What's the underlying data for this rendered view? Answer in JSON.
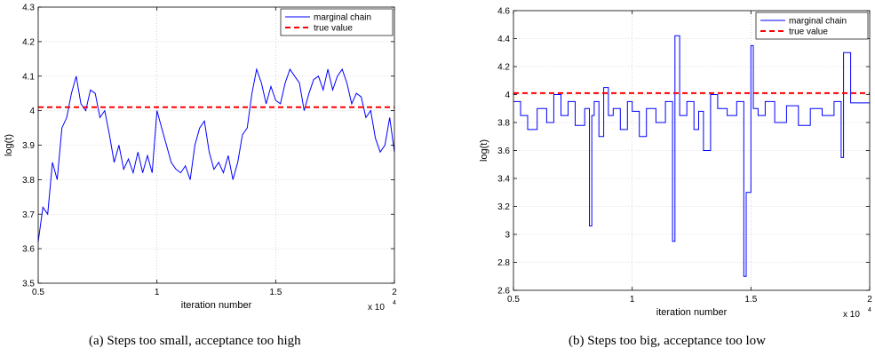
{
  "chart_data": [
    {
      "type": "line",
      "caption": "(a)  Steps too small, acceptance too high",
      "xlabel": "iteration number",
      "ylabel": "log(t)",
      "x_multiplier": "x 10",
      "x_multiplier_exp": "4",
      "xlim": [
        0.5,
        2
      ],
      "ylim": [
        3.5,
        4.3
      ],
      "xticks": [
        "0.5",
        "1",
        "1.5",
        "2"
      ],
      "yticks": [
        "3.5",
        "3.6",
        "3.7",
        "3.8",
        "3.9",
        "4",
        "4.1",
        "4.2",
        "4.3"
      ],
      "grid": true,
      "legend_position": "top-right",
      "series": [
        {
          "name": "marginal chain",
          "color": "#0000ff",
          "style": "solid",
          "x": [
            0.5,
            0.52,
            0.54,
            0.56,
            0.58,
            0.6,
            0.62,
            0.64,
            0.66,
            0.68,
            0.7,
            0.72,
            0.74,
            0.76,
            0.78,
            0.8,
            0.82,
            0.84,
            0.86,
            0.88,
            0.9,
            0.92,
            0.94,
            0.96,
            0.98,
            1.0,
            1.02,
            1.04,
            1.06,
            1.08,
            1.1,
            1.12,
            1.14,
            1.16,
            1.18,
            1.2,
            1.22,
            1.24,
            1.26,
            1.28,
            1.3,
            1.32,
            1.34,
            1.36,
            1.38,
            1.4,
            1.42,
            1.44,
            1.46,
            1.48,
            1.5,
            1.52,
            1.54,
            1.56,
            1.58,
            1.6,
            1.62,
            1.64,
            1.66,
            1.68,
            1.7,
            1.72,
            1.74,
            1.76,
            1.78,
            1.8,
            1.82,
            1.84,
            1.86,
            1.88,
            1.9,
            1.92,
            1.94,
            1.96,
            1.98,
            2.0
          ],
          "values": [
            3.62,
            3.72,
            3.7,
            3.85,
            3.8,
            3.95,
            3.98,
            4.05,
            4.1,
            4.02,
            4.0,
            4.06,
            4.05,
            3.98,
            4.0,
            3.93,
            3.85,
            3.9,
            3.83,
            3.86,
            3.82,
            3.88,
            3.82,
            3.87,
            3.82,
            4.0,
            3.95,
            3.9,
            3.85,
            3.83,
            3.82,
            3.84,
            3.8,
            3.9,
            3.95,
            3.97,
            3.88,
            3.83,
            3.85,
            3.82,
            3.87,
            3.8,
            3.85,
            3.93,
            3.95,
            4.05,
            4.12,
            4.08,
            4.02,
            4.07,
            4.03,
            4.02,
            4.08,
            4.12,
            4.1,
            4.08,
            4.0,
            4.05,
            4.09,
            4.1,
            4.06,
            4.12,
            4.06,
            4.1,
            4.12,
            4.08,
            4.02,
            4.05,
            4.04,
            3.98,
            4.0,
            3.92,
            3.88,
            3.9,
            3.98,
            3.88
          ]
        },
        {
          "name": "true value",
          "color": "#ff0000",
          "style": "dashed",
          "x": [
            0.5,
            2.0
          ],
          "values": [
            4.01,
            4.01
          ]
        }
      ]
    },
    {
      "type": "line",
      "caption": "(b)  Steps too big, acceptance too low",
      "xlabel": "iteration number",
      "ylabel": "log(t)",
      "x_multiplier": "x 10",
      "x_multiplier_exp": "4",
      "xlim": [
        0.5,
        2
      ],
      "ylim": [
        2.6,
        4.6
      ],
      "xticks": [
        "0.5",
        "1",
        "1.5",
        "2"
      ],
      "yticks": [
        "2.6",
        "2.8",
        "3",
        "3.2",
        "3.4",
        "3.6",
        "3.8",
        "4",
        "4.2",
        "4.4",
        "4.6"
      ],
      "grid": true,
      "legend_position": "top-right",
      "series": [
        {
          "name": "marginal chain",
          "color": "#0000ff",
          "style": "solid",
          "x": [
            0.5,
            0.53,
            0.53,
            0.56,
            0.56,
            0.6,
            0.6,
            0.64,
            0.64,
            0.67,
            0.67,
            0.7,
            0.7,
            0.73,
            0.73,
            0.76,
            0.76,
            0.8,
            0.8,
            0.82,
            0.82,
            0.83,
            0.83,
            0.84,
            0.84,
            0.86,
            0.86,
            0.88,
            0.88,
            0.9,
            0.9,
            0.92,
            0.92,
            0.95,
            0.95,
            0.98,
            0.98,
            1.0,
            1.0,
            1.03,
            1.03,
            1.06,
            1.06,
            1.1,
            1.1,
            1.14,
            1.14,
            1.17,
            1.17,
            1.18,
            1.18,
            1.2,
            1.2,
            1.23,
            1.23,
            1.26,
            1.26,
            1.28,
            1.28,
            1.3,
            1.3,
            1.33,
            1.33,
            1.36,
            1.36,
            1.4,
            1.4,
            1.44,
            1.44,
            1.47,
            1.47,
            1.48,
            1.48,
            1.5,
            1.5,
            1.51,
            1.51,
            1.53,
            1.53,
            1.56,
            1.56,
            1.6,
            1.6,
            1.65,
            1.65,
            1.7,
            1.7,
            1.75,
            1.75,
            1.8,
            1.8,
            1.85,
            1.85,
            1.88,
            1.88,
            1.89,
            1.89,
            1.92,
            1.92,
            2.0
          ],
          "values": [
            3.95,
            3.95,
            3.85,
            3.85,
            3.75,
            3.75,
            3.9,
            3.9,
            3.8,
            3.8,
            4.0,
            4.0,
            3.85,
            3.85,
            3.95,
            3.95,
            3.78,
            3.78,
            3.9,
            3.9,
            3.06,
            3.06,
            3.85,
            3.85,
            3.95,
            3.95,
            3.7,
            3.7,
            4.05,
            4.05,
            3.85,
            3.85,
            3.9,
            3.9,
            3.75,
            3.75,
            3.95,
            3.95,
            3.88,
            3.88,
            3.7,
            3.7,
            3.9,
            3.9,
            3.8,
            3.8,
            3.95,
            3.95,
            2.95,
            2.95,
            4.42,
            4.42,
            3.85,
            3.85,
            3.95,
            3.95,
            3.75,
            3.75,
            3.88,
            3.88,
            3.6,
            3.6,
            4.0,
            4.0,
            3.9,
            3.9,
            3.85,
            3.85,
            3.95,
            3.95,
            2.7,
            2.7,
            3.3,
            3.3,
            4.35,
            4.35,
            3.9,
            3.9,
            3.85,
            3.85,
            3.95,
            3.95,
            3.8,
            3.8,
            3.92,
            3.92,
            3.78,
            3.78,
            3.9,
            3.9,
            3.85,
            3.85,
            3.95,
            3.95,
            3.55,
            3.55,
            4.3,
            4.3,
            3.94,
            3.94
          ]
        },
        {
          "name": "true value",
          "color": "#ff0000",
          "style": "dashed",
          "x": [
            0.5,
            2.0
          ],
          "values": [
            4.01,
            4.01
          ]
        }
      ]
    }
  ]
}
